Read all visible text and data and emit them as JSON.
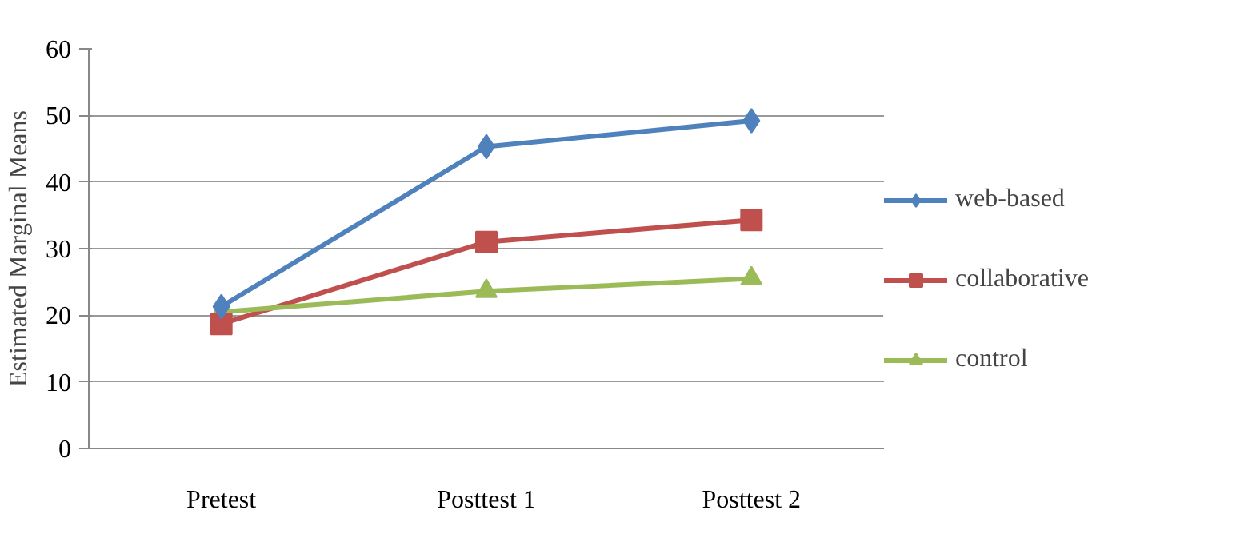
{
  "chart_data": {
    "type": "line",
    "ylabel": "Estimated Marginal Means",
    "categories": [
      "Pretest",
      "Posttest 1",
      "Posttest 2"
    ],
    "series": [
      {
        "name": "web-based",
        "color": "#4f81bd",
        "marker": "diamond",
        "values": [
          21.3,
          45.3,
          49.2
        ]
      },
      {
        "name": "collaborative",
        "color": "#c0504d",
        "marker": "square",
        "values": [
          18.7,
          31.0,
          34.3
        ]
      },
      {
        "name": "control",
        "color": "#9bbb59",
        "marker": "triangle",
        "values": [
          20.5,
          23.6,
          25.5
        ]
      }
    ],
    "ylim": [
      0,
      60
    ],
    "yticks": [
      0,
      10,
      20,
      30,
      40,
      50,
      60
    ],
    "grid": "y",
    "legend": "right"
  }
}
